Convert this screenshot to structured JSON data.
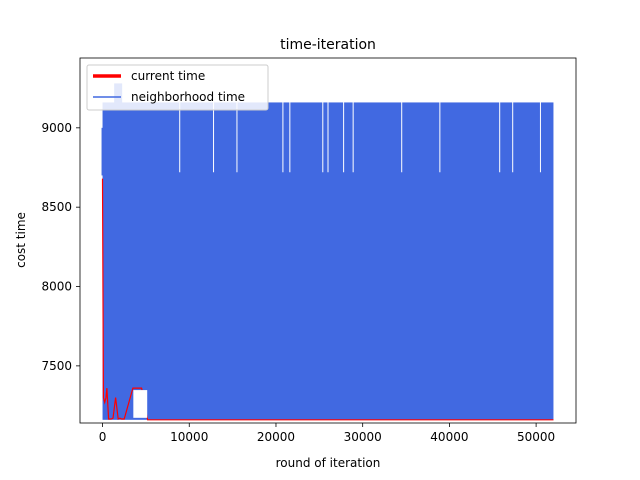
{
  "chart_data": {
    "type": "line",
    "title": "time-iteration",
    "xlabel": "round of iteration",
    "ylabel": "cost time",
    "xlim": [
      -2600,
      54600
    ],
    "ylim": [
      7140,
      9440
    ],
    "xticks": [
      0,
      10000,
      20000,
      30000,
      40000,
      50000
    ],
    "xtick_labels": [
      "0",
      "10000",
      "20000",
      "30000",
      "40000",
      "50000"
    ],
    "yticks": [
      7500,
      8000,
      8500,
      9000
    ],
    "ytick_labels": [
      "7500",
      "8000",
      "8500",
      "9000"
    ],
    "grid": false,
    "legend_position": "top-left",
    "series": [
      {
        "name": "current time",
        "color": "#ff0000",
        "x": [
          0,
          100,
          250,
          400,
          500,
          700,
          900,
          1000,
          1200,
          1500,
          1800,
          2000,
          2200,
          2500,
          3500,
          4500,
          5200,
          5400,
          6000,
          10000,
          20000,
          30000,
          40000,
          50000,
          52000
        ],
        "values": [
          8680,
          7300,
          7270,
          7300,
          7360,
          7165,
          7165,
          7165,
          7170,
          7300,
          7165,
          7170,
          7165,
          7165,
          7360,
          7360,
          7160,
          7160,
          7160,
          7160,
          7160,
          7160,
          7160,
          7160,
          7160
        ]
      },
      {
        "name": "neighborhood time",
        "color": "#4169e1",
        "x_range": [
          0,
          52000
        ],
        "upper_envelope": 9160,
        "lower_envelope": 7160,
        "peak_values": [
          9280
        ],
        "peak_x": [
          1800
        ]
      }
    ]
  }
}
